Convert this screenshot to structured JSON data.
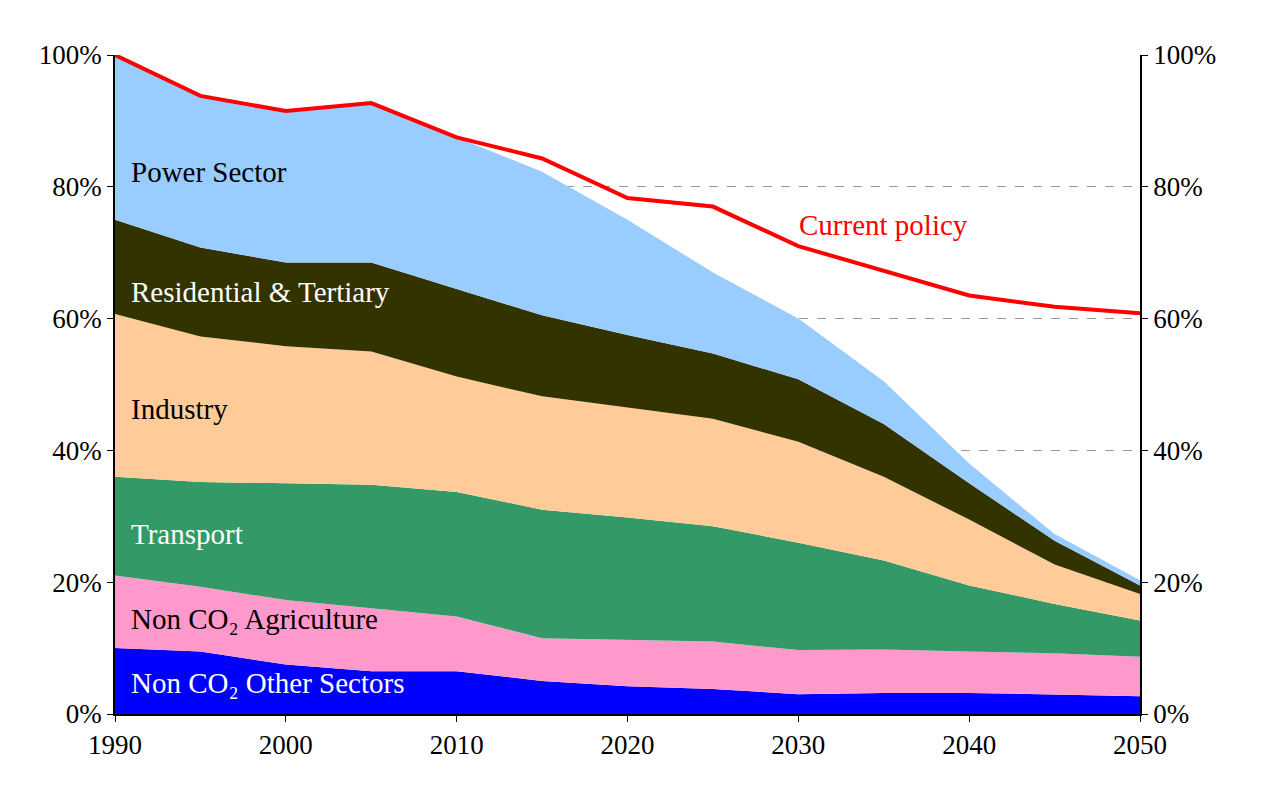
{
  "chart_data": {
    "type": "area",
    "stacked": true,
    "grid": true,
    "x": [
      1990,
      1995,
      2000,
      2005,
      2010,
      2015,
      2020,
      2025,
      2030,
      2035,
      2040,
      2045,
      2050
    ],
    "xlim": [
      1990,
      2050
    ],
    "xticks": [
      1990,
      2000,
      2010,
      2020,
      2030,
      2040,
      2050
    ],
    "ylim": [
      0,
      100
    ],
    "yticks": [
      {
        "value": 0,
        "label": "0%"
      },
      {
        "value": 20,
        "label": "20%"
      },
      {
        "value": 40,
        "label": "40%"
      },
      {
        "value": 60,
        "label": "60%"
      },
      {
        "value": 80,
        "label": "80%"
      },
      {
        "value": 100,
        "label": "100%"
      }
    ],
    "y2lim": [
      0,
      100
    ],
    "y2ticks": [
      {
        "value": 0,
        "label": "0%"
      },
      {
        "value": 20,
        "label": "20%"
      },
      {
        "value": 40,
        "label": "40%"
      },
      {
        "value": 60,
        "label": "60%"
      },
      {
        "value": 80,
        "label": "80%"
      },
      {
        "value": 100,
        "label": "100%"
      }
    ],
    "series": [
      {
        "name": "Non CO₂ Other Sectors",
        "color": "#0000ff",
        "values": [
          10,
          9.5,
          7.5,
          6.5,
          6.5,
          5,
          4.2,
          3.8,
          3,
          3.2,
          3.2,
          3,
          2.7
        ]
      },
      {
        "name": "Non CO₂ Agriculture",
        "color": "#ff99cc",
        "values": [
          11,
          9.8,
          9.8,
          9.5,
          8.3,
          6.5,
          7,
          7.2,
          6.7,
          6.6,
          6.3,
          6.2,
          6
        ]
      },
      {
        "name": "Transport",
        "color": "#339966",
        "values": [
          15,
          15.9,
          17.7,
          18.8,
          18.9,
          19.5,
          18.6,
          17.5,
          16.3,
          13.5,
          10,
          7.5,
          5.5
        ]
      },
      {
        "name": "Industry",
        "color": "#ffcc99",
        "values": [
          24.7,
          22.1,
          20.8,
          20.2,
          17.5,
          17.2,
          16.7,
          16.3,
          15.3,
          12.7,
          10,
          6,
          4
        ]
      },
      {
        "name": "Residential & Tertiary",
        "color": "#333300",
        "values": [
          14.3,
          13.5,
          12.7,
          13.5,
          13.3,
          12.3,
          11,
          9.9,
          9.5,
          8,
          5.5,
          3.6,
          1.3
        ]
      },
      {
        "name": "Power Sector",
        "color": "#99ccff",
        "values": [
          25,
          23,
          23,
          24.2,
          23,
          21.8,
          17.5,
          12.3,
          9.2,
          6.5,
          3,
          1,
          0.8
        ]
      },
      {
        "name": "Current policy",
        "color": "#ff0000",
        "type": "line",
        "stacked": false,
        "values": [
          100,
          93.8,
          91.5,
          92.7,
          87.5,
          84.3,
          78.3,
          77,
          71,
          67.2,
          63.5,
          61.8,
          60.8
        ]
      }
    ]
  }
}
